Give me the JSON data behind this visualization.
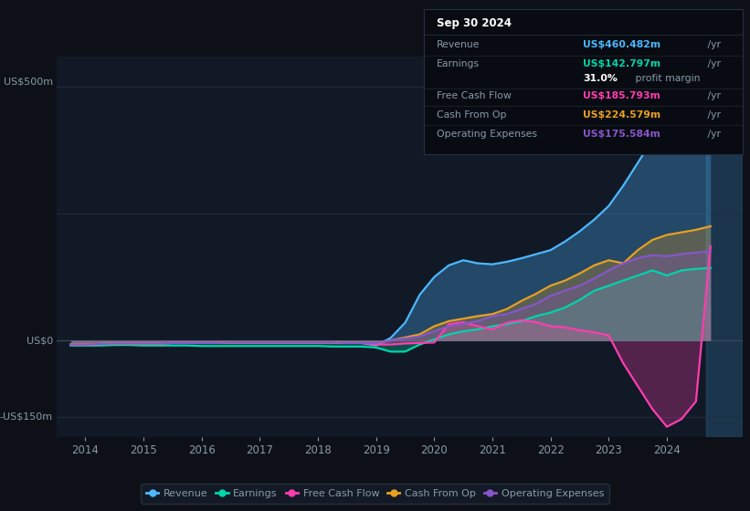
{
  "bg_color": "#0d1117",
  "plot_bg_color": "#111927",
  "grid_color": "#1e2d3d",
  "text_color": "#8899aa",
  "ylabel_500": "US$500m",
  "ylabel_0": "US$0",
  "ylabel_neg150": "-US$150m",
  "x_labels": [
    "2014",
    "2015",
    "2016",
    "2017",
    "2018",
    "2019",
    "2020",
    "2021",
    "2022",
    "2023",
    "2024"
  ],
  "years": [
    2013.75,
    2014.0,
    2014.25,
    2014.5,
    2014.75,
    2015.0,
    2015.25,
    2015.5,
    2015.75,
    2016.0,
    2016.25,
    2016.5,
    2016.75,
    2017.0,
    2017.25,
    2017.5,
    2017.75,
    2018.0,
    2018.25,
    2018.5,
    2018.75,
    2019.0,
    2019.25,
    2019.5,
    2019.75,
    2020.0,
    2020.25,
    2020.5,
    2020.75,
    2021.0,
    2021.25,
    2021.5,
    2021.75,
    2022.0,
    2022.25,
    2022.5,
    2022.75,
    2023.0,
    2023.25,
    2023.5,
    2023.75,
    2024.0,
    2024.25,
    2024.5,
    2024.75
  ],
  "revenue": [
    -8,
    -8,
    -7,
    -6,
    -6,
    -6,
    -6,
    -5,
    -5,
    -5,
    -5,
    -4,
    -4,
    -4,
    -4,
    -4,
    -4,
    -4,
    -4,
    -5,
    -5,
    -10,
    5,
    35,
    90,
    125,
    148,
    158,
    152,
    150,
    155,
    162,
    170,
    178,
    195,
    215,
    238,
    265,
    305,
    350,
    395,
    440,
    462,
    470,
    460
  ],
  "earnings": [
    -10,
    -10,
    -10,
    -9,
    -9,
    -10,
    -10,
    -10,
    -10,
    -11,
    -11,
    -11,
    -11,
    -11,
    -11,
    -11,
    -11,
    -11,
    -12,
    -12,
    -12,
    -14,
    -22,
    -22,
    -8,
    2,
    12,
    18,
    22,
    28,
    32,
    38,
    48,
    55,
    65,
    80,
    98,
    108,
    118,
    128,
    138,
    128,
    138,
    141,
    143
  ],
  "free_cash_flow": [
    -8,
    -8,
    -7,
    -6,
    -6,
    -6,
    -6,
    -5,
    -5,
    -5,
    -5,
    -4,
    -4,
    -4,
    -4,
    -4,
    -4,
    -4,
    -4,
    -5,
    -5,
    -8,
    -8,
    -6,
    -5,
    -4,
    32,
    36,
    28,
    22,
    35,
    40,
    36,
    28,
    26,
    20,
    16,
    10,
    -45,
    -90,
    -135,
    -170,
    -155,
    -120,
    186
  ],
  "cash_from_op": [
    -8,
    -8,
    -7,
    -6,
    -6,
    -6,
    -6,
    -5,
    -5,
    -5,
    -5,
    -4,
    -4,
    -4,
    -4,
    -4,
    -4,
    -4,
    -4,
    -5,
    -5,
    -5,
    0,
    6,
    12,
    28,
    38,
    43,
    48,
    52,
    62,
    78,
    92,
    108,
    118,
    132,
    148,
    158,
    152,
    178,
    198,
    208,
    213,
    218,
    225
  ],
  "operating_expenses": [
    -8,
    -8,
    -7,
    -6,
    -6,
    -6,
    -6,
    -5,
    -5,
    -5,
    -5,
    -4,
    -4,
    -4,
    -4,
    -4,
    -4,
    -4,
    -4,
    -5,
    -5,
    -5,
    0,
    4,
    8,
    18,
    28,
    33,
    38,
    48,
    52,
    62,
    72,
    88,
    98,
    108,
    122,
    138,
    152,
    162,
    168,
    166,
    170,
    173,
    176
  ],
  "revenue_color": "#4db8ff",
  "earnings_color": "#00d4aa",
  "free_cash_flow_color": "#ff3daf",
  "cash_from_op_color": "#e8a020",
  "operating_expenses_color": "#8855cc",
  "tooltip_bg": "#080c12",
  "tooltip_border": "#252f3d",
  "tooltip_title": "Sep 30 2024",
  "tooltip_revenue_label": "Revenue",
  "tooltip_revenue_val": "US$460.482m",
  "tooltip_earnings_label": "Earnings",
  "tooltip_earnings_val": "US$142.797m",
  "tooltip_margin_val": "31.0%",
  "tooltip_margin_text": " profit margin",
  "tooltip_fcf_label": "Free Cash Flow",
  "tooltip_fcf_val": "US$185.793m",
  "tooltip_cashop_label": "Cash From Op",
  "tooltip_cashop_val": "US$224.579m",
  "tooltip_opex_label": "Operating Expenses",
  "tooltip_opex_val": "US$175.584m",
  "ylim_min": -190,
  "ylim_max": 560,
  "xlim_min": 2013.5,
  "xlim_max": 2025.3,
  "legend_labels": [
    "Revenue",
    "Earnings",
    "Free Cash Flow",
    "Cash From Op",
    "Operating Expenses"
  ],
  "legend_colors": [
    "#4db8ff",
    "#00d4aa",
    "#ff3daf",
    "#e8a020",
    "#8855cc"
  ]
}
